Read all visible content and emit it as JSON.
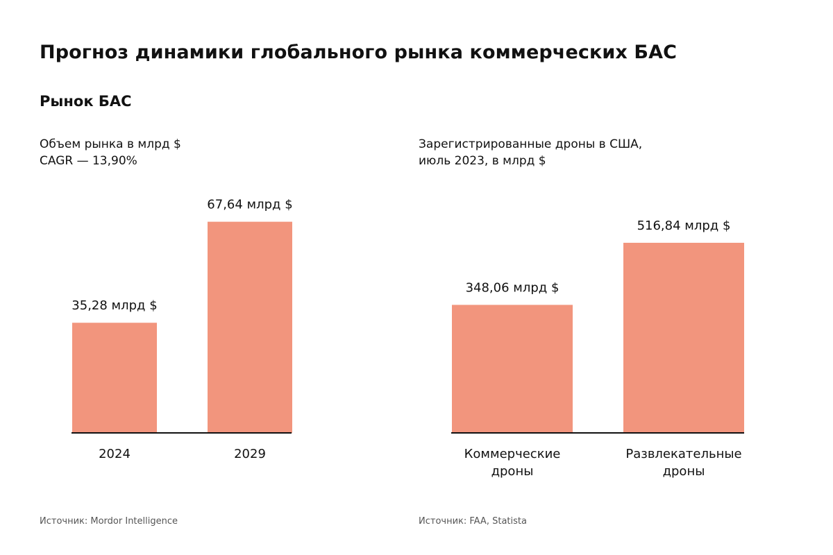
{
  "title": "Прогноз динамики глобального рынка коммерческих БАС",
  "subtitle": "Рынок БАС",
  "charts": [
    {
      "heading": [
        "Объем рынка в млрд $",
        "CAGR — 13,90%"
      ],
      "source": "Источник: Mordor Intelligence"
    },
    {
      "heading": [
        "Зарегистрированные дроны в США,",
        "июль 2023, в млрд $"
      ],
      "source": "Источник: FAA, Statista"
    }
  ],
  "colors": {
    "bar": "#F2957D",
    "axis": "#111111"
  },
  "chart_data": [
    {
      "type": "bar",
      "categories": [
        "2024",
        "2029"
      ],
      "values": [
        35.28,
        67.64
      ],
      "value_labels": [
        "35,28 млрд $",
        "67,64 млрд $"
      ],
      "ylim": [
        0,
        76
      ]
    },
    {
      "type": "bar",
      "categories": [
        [
          "Коммерческие",
          "дроны"
        ],
        [
          "Развлекательные",
          "дроны"
        ]
      ],
      "values": [
        348.06,
        516.84
      ],
      "value_labels": [
        "348,06 млрд $",
        "516,84 млрд $"
      ],
      "ylim": [
        0,
        645
      ]
    }
  ]
}
